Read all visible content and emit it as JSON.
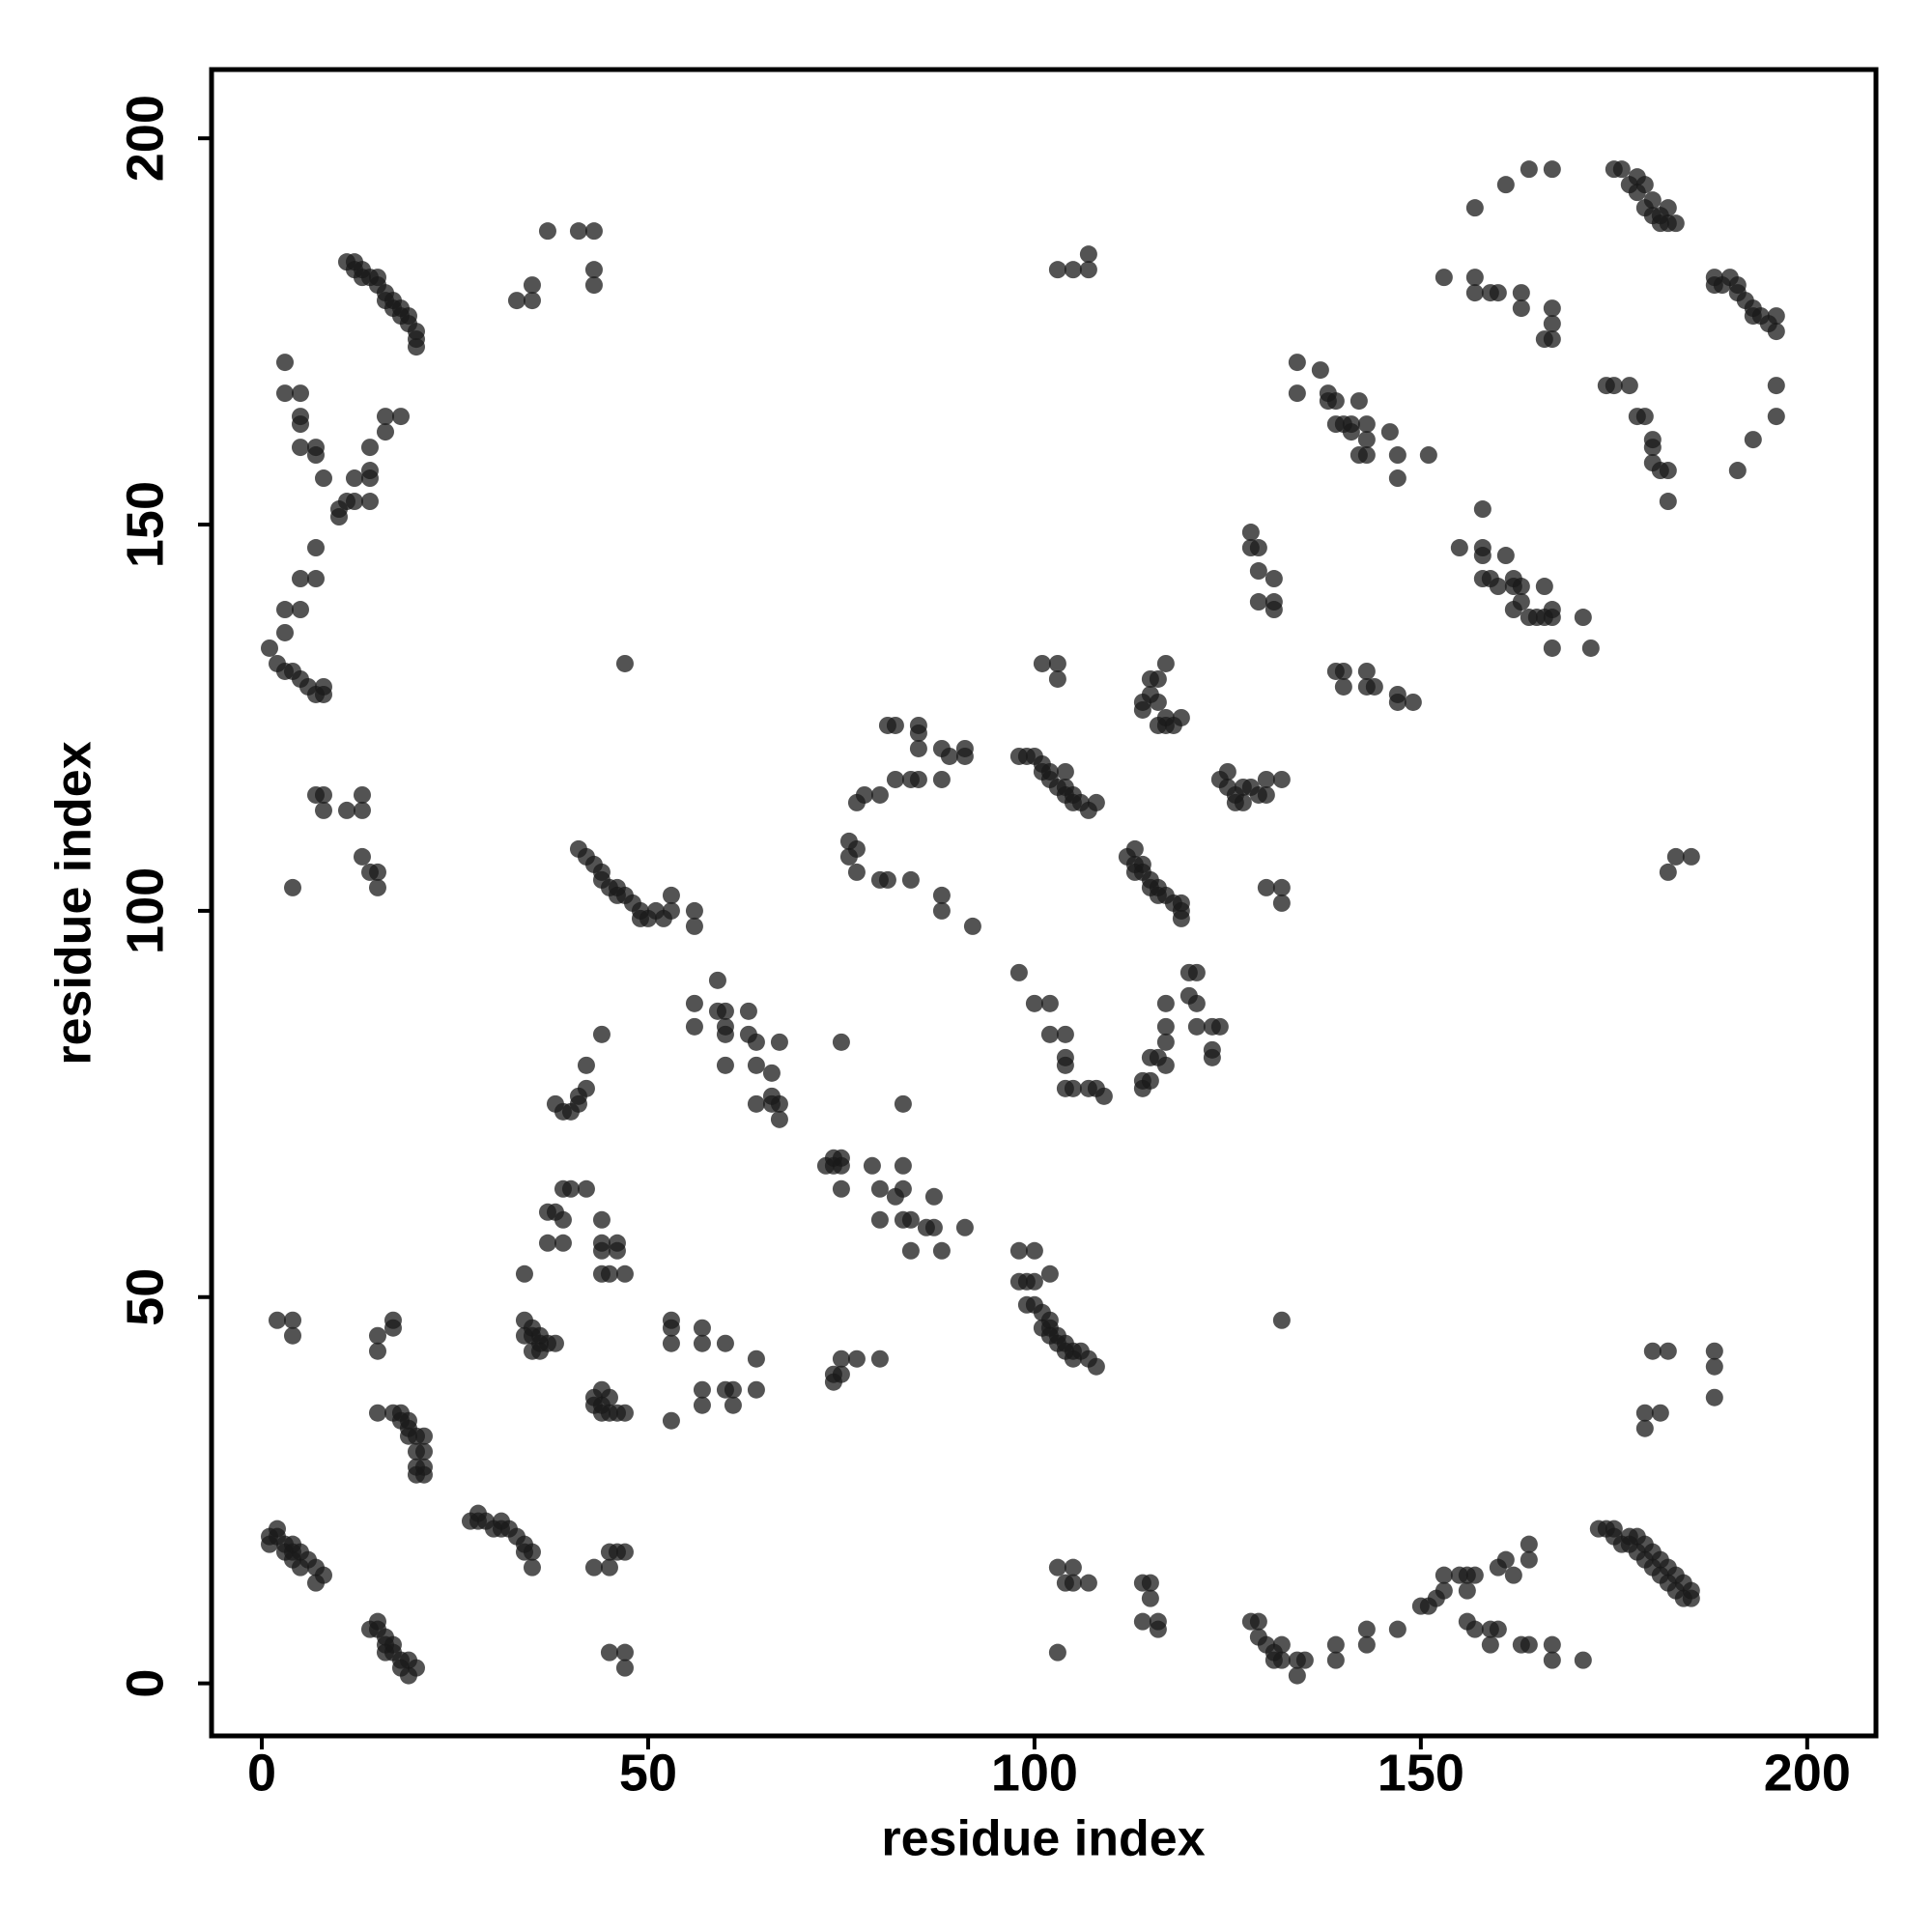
{
  "chart_data": {
    "type": "scatter",
    "xlabel": "residue index",
    "ylabel": "residue index",
    "xlim": [
      -6.5,
      208.9
    ],
    "ylim": [
      -6.8,
      208.9
    ],
    "xticks": [
      0,
      50,
      100,
      150,
      200
    ],
    "yticks": [
      0,
      50,
      100,
      150,
      200
    ],
    "grid": false,
    "color": "#1a1a1a",
    "opacity": 0.75,
    "x": [
      11,
      12,
      12,
      13,
      13,
      14,
      15,
      15,
      16,
      16,
      17,
      17,
      18,
      18,
      19,
      19,
      20,
      20,
      20,
      33,
      35,
      35,
      37,
      41,
      43,
      43,
      43,
      3,
      3,
      5,
      5,
      5,
      5,
      7,
      7,
      8,
      10,
      10,
      11,
      12,
      12,
      14,
      14,
      14,
      14,
      16,
      16,
      18,
      7,
      5,
      7,
      3,
      5,
      3,
      1,
      2,
      3,
      4,
      5,
      6,
      7,
      8,
      8,
      7,
      8,
      8,
      11,
      13,
      13,
      13,
      14,
      15,
      15,
      4,
      47,
      41,
      42,
      43,
      44,
      44,
      45,
      46,
      46,
      47,
      48,
      49,
      49,
      50,
      51,
      52,
      53,
      53,
      56,
      56,
      103,
      105,
      107,
      107,
      76,
      76,
      77,
      77,
      77,
      78,
      80,
      80,
      81,
      82,
      81,
      82,
      85,
      85,
      85,
      84,
      85,
      88,
      89,
      88,
      91,
      91,
      84,
      88,
      88,
      92,
      98,
      99,
      100,
      101,
      101,
      102,
      102,
      103,
      104,
      104,
      105,
      105,
      106,
      107,
      108,
      104,
      101,
      103,
      103,
      98,
      100,
      102,
      102,
      104,
      104,
      104,
      104,
      105,
      107,
      108,
      109,
      114,
      114,
      115,
      115,
      116,
      117,
      117,
      117,
      117,
      120,
      121,
      120,
      121,
      121,
      123,
      124,
      123,
      123,
      112,
      113,
      113,
      113,
      114,
      115,
      115,
      116,
      116,
      117,
      118,
      119,
      119,
      119,
      114,
      114,
      114,
      115,
      115,
      116,
      116,
      116,
      117,
      117,
      117,
      118,
      119,
      124,
      125,
      125,
      126,
      126,
      127,
      127,
      128,
      129,
      130,
      130,
      132,
      130,
      132,
      132,
      128,
      128,
      129,
      129,
      129,
      131,
      131,
      131,
      134,
      134,
      137,
      138,
      138,
      139,
      139,
      140,
      141,
      141,
      142,
      143,
      143,
      142,
      143,
      146,
      147,
      147,
      151,
      139,
      140,
      140,
      143,
      143,
      144,
      147,
      147,
      149,
      155,
      158,
      158,
      158,
      158,
      159,
      160,
      161,
      162,
      162,
      163,
      162,
      163,
      164,
      165,
      166,
      166,
      167,
      167,
      167,
      171,
      172,
      157,
      153,
      157,
      157,
      159,
      160,
      163,
      163,
      167,
      167,
      167,
      166,
      161,
      164,
      167,
      175,
      176,
      177,
      178,
      178,
      179,
      180,
      179,
      180,
      181,
      181,
      182,
      182,
      183,
      188,
      188,
      189,
      190,
      191,
      191,
      192,
      193,
      193,
      194,
      195,
      196,
      196,
      196,
      196,
      193,
      191,
      174,
      175,
      177,
      178,
      179,
      180,
      180,
      180,
      181,
      182,
      182,
      182,
      183,
      185,
      56,
      56,
      59,
      59,
      60,
      60,
      60,
      60,
      63,
      63,
      64,
      64,
      64,
      66,
      66,
      66,
      67,
      67,
      67,
      38,
      39,
      40,
      41,
      41,
      42,
      42,
      44,
      73,
      74,
      74,
      75,
      75,
      75,
      79,
      80,
      80,
      82,
      83,
      83,
      83,
      84,
      86,
      87,
      87,
      88,
      91,
      84,
      83,
      75,
      37,
      37,
      38,
      39,
      39,
      39,
      40,
      42,
      44,
      44,
      44,
      44,
      45,
      46,
      46,
      47,
      34,
      34,
      35,
      35,
      36,
      36,
      37,
      38,
      35,
      36,
      34,
      43,
      43,
      44,
      44,
      45,
      45,
      46,
      47,
      44,
      53,
      53,
      53,
      53,
      57,
      57,
      57,
      57,
      60,
      60,
      61,
      61,
      64,
      64,
      74,
      74,
      75,
      75,
      77,
      80,
      98,
      98,
      99,
      99,
      100,
      100,
      100,
      101,
      101,
      102,
      102,
      102,
      102,
      103,
      103,
      104,
      104,
      105,
      105,
      106,
      107,
      108,
      132,
      2,
      4,
      4,
      15,
      15,
      17,
      17,
      15,
      17,
      18,
      18,
      19,
      19,
      19,
      20,
      20,
      20,
      20,
      21,
      21,
      21,
      21,
      1,
      1,
      2,
      2,
      3,
      3,
      4,
      4,
      4,
      5,
      5,
      6,
      7,
      7,
      8,
      27,
      28,
      28,
      29,
      30,
      31,
      31,
      32,
      33,
      34,
      34,
      35,
      35,
      14,
      15,
      15,
      16,
      16,
      16,
      17,
      17,
      18,
      18,
      19,
      19,
      20,
      43,
      45,
      45,
      46,
      47,
      45,
      47,
      47,
      103,
      104,
      105,
      105,
      107,
      103,
      114,
      115,
      115,
      114,
      116,
      116,
      128,
      129,
      129,
      130,
      131,
      131,
      132,
      132,
      134,
      134,
      135,
      139,
      139,
      143,
      143,
      147,
      150,
      151,
      152,
      153,
      153,
      155,
      156,
      157,
      156,
      156,
      157,
      159,
      160,
      159,
      160,
      161,
      162,
      163,
      164,
      164,
      164,
      167,
      167,
      171,
      173,
      174,
      175,
      175,
      176,
      177,
      177,
      178,
      178,
      179,
      179,
      180,
      180,
      181,
      181,
      182,
      182,
      183,
      183,
      184,
      184,
      185,
      185,
      180,
      182,
      181,
      179,
      179,
      188,
      188,
      188
    ],
    "values": [
      184,
      184,
      183,
      183,
      182,
      182,
      182,
      181,
      180,
      179,
      179,
      178,
      178,
      177,
      177,
      176,
      175,
      174,
      173,
      179,
      179,
      181,
      188,
      188,
      188,
      183,
      181,
      171,
      167,
      167,
      164,
      163,
      160,
      160,
      159,
      156,
      151,
      152,
      153,
      153,
      156,
      156,
      157,
      153,
      160,
      164,
      162,
      164,
      147,
      143,
      143,
      139,
      139,
      136,
      134,
      132,
      131,
      131,
      130,
      129,
      128,
      128,
      129,
      115,
      115,
      113,
      113,
      113,
      115,
      107,
      105,
      105,
      103,
      103,
      132,
      108,
      107,
      106,
      105,
      104,
      103,
      103,
      102,
      102,
      101,
      100,
      99,
      99,
      100,
      99,
      100,
      102,
      100,
      98,
      183,
      183,
      185,
      183,
      109,
      107,
      105,
      108,
      114,
      115,
      115,
      104,
      104,
      117,
      124,
      124,
      124,
      123,
      121,
      117,
      117,
      121,
      120,
      117,
      121,
      120,
      104,
      102,
      100,
      98,
      120,
      120,
      120,
      119,
      118,
      118,
      117,
      116,
      115,
      116,
      115,
      114,
      114,
      113,
      114,
      118,
      132,
      132,
      130,
      92,
      88,
      88,
      84,
      84,
      81,
      80,
      77,
      77,
      77,
      77,
      76,
      77,
      78,
      78,
      81,
      81,
      80,
      83,
      85,
      88,
      92,
      92,
      89,
      88,
      85,
      85,
      85,
      82,
      81,
      107,
      108,
      106,
      105,
      105,
      104,
      103,
      103,
      102,
      102,
      101,
      101,
      100,
      99,
      106,
      127,
      126,
      128,
      130,
      130,
      127,
      124,
      132,
      125,
      124,
      124,
      125,
      117,
      118,
      116,
      115,
      114,
      114,
      116,
      116,
      115,
      115,
      117,
      117,
      103,
      103,
      101,
      149,
      147,
      147,
      144,
      140,
      143,
      140,
      139,
      171,
      167,
      170,
      167,
      166,
      166,
      163,
      163,
      163,
      162,
      166,
      163,
      161,
      159,
      159,
      162,
      159,
      156,
      159,
      131,
      131,
      129,
      131,
      129,
      129,
      128,
      127,
      127,
      147,
      152,
      147,
      146,
      143,
      143,
      142,
      146,
      143,
      142,
      142,
      139,
      140,
      138,
      138,
      142,
      138,
      139,
      138,
      134,
      138,
      134,
      191,
      182,
      182,
      180,
      180,
      180,
      180,
      178,
      178,
      176,
      174,
      174,
      194,
      196,
      196,
      196,
      196,
      194,
      193,
      195,
      194,
      192,
      191,
      190,
      190,
      189,
      189,
      191,
      189,
      182,
      181,
      181,
      182,
      181,
      180,
      179,
      178,
      177,
      177,
      176,
      177,
      175,
      168,
      164,
      161,
      157,
      168,
      168,
      168,
      164,
      164,
      161,
      160,
      158,
      157,
      157,
      153,
      105,
      107,
      107,
      88,
      85,
      91,
      87,
      87,
      85,
      84,
      80,
      87,
      84,
      83,
      80,
      75,
      79,
      76,
      75,
      73,
      75,
      83,
      75,
      74,
      74,
      75,
      76,
      77,
      80,
      84,
      67,
      67,
      68,
      68,
      67,
      64,
      67,
      64,
      60,
      63,
      67,
      64,
      60,
      60,
      59,
      63,
      59,
      56,
      59,
      56,
      75,
      83,
      61,
      57,
      61,
      64,
      60,
      57,
      64,
      64,
      60,
      57,
      56,
      53,
      53,
      57,
      56,
      53,
      53,
      47,
      46,
      45,
      45,
      44,
      44,
      44,
      43,
      43,
      45,
      37,
      36,
      36,
      35,
      35,
      37,
      35,
      35,
      38,
      47,
      46,
      44,
      34,
      46,
      44,
      38,
      36,
      44,
      38,
      38,
      36,
      42,
      38,
      40,
      39,
      40,
      42,
      42,
      42,
      56,
      52,
      52,
      49,
      56,
      52,
      49,
      48,
      46,
      47,
      46,
      45,
      53,
      45,
      44,
      43,
      44,
      43,
      42,
      43,
      42,
      41,
      47,
      47,
      47,
      45,
      45,
      43,
      47,
      46,
      35,
      35,
      35,
      34,
      34,
      33,
      32,
      32,
      30,
      28,
      27,
      27,
      28,
      30,
      32,
      19,
      18,
      20,
      19,
      18,
      17,
      18,
      17,
      16,
      17,
      15,
      16,
      15,
      13,
      14,
      21,
      22,
      21,
      21,
      20,
      20,
      21,
      20,
      19,
      18,
      17,
      17,
      15,
      7,
      8,
      7,
      6,
      5,
      4,
      5,
      4,
      3,
      2,
      1,
      3,
      2,
      15,
      15,
      17,
      17,
      17,
      4,
      4,
      2,
      15,
      13,
      15,
      13,
      13,
      4,
      13,
      11,
      13,
      8,
      8,
      7,
      8,
      8,
      6,
      5,
      4,
      3,
      5,
      3,
      1,
      3,
      3,
      3,
      5,
      7,
      5,
      7,
      10,
      10,
      11,
      12,
      14,
      14,
      14,
      14,
      12,
      8,
      7,
      7,
      7,
      5,
      15,
      16,
      14,
      5,
      5,
      16,
      18,
      5,
      3,
      3,
      20,
      20,
      20,
      19,
      18,
      19,
      18,
      19,
      17,
      18,
      16,
      17,
      15,
      16,
      14,
      15,
      13,
      14,
      12,
      13,
      11,
      12,
      11,
      43,
      43,
      35,
      35,
      33,
      43,
      41,
      37
    ]
  }
}
